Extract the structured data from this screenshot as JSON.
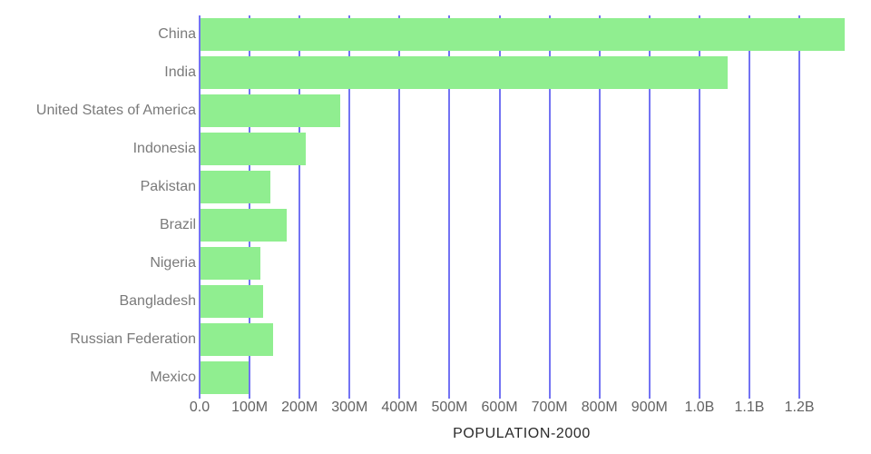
{
  "chart_data": {
    "type": "bar",
    "orientation": "horizontal",
    "title": "",
    "xlabel": "POPULATION-2000",
    "ylabel": "",
    "grid": true,
    "legend": false,
    "categories": [
      "China",
      "India",
      "United States of America",
      "Indonesia",
      "Pakistan",
      "Brazil",
      "Nigeria",
      "Bangladesh",
      "Russian Federation",
      "Mexico"
    ],
    "values_millions": [
      1290.6,
      1056.6,
      281.7,
      211.5,
      142.3,
      174.8,
      122.3,
      127.7,
      146.8,
      98.9
    ],
    "xlim_millions": [
      0,
      1290.6
    ],
    "xticks": [
      {
        "label": "0.0",
        "value_millions": 0
      },
      {
        "label": "100M",
        "value_millions": 100
      },
      {
        "label": "200M",
        "value_millions": 200
      },
      {
        "label": "300M",
        "value_millions": 300
      },
      {
        "label": "400M",
        "value_millions": 400
      },
      {
        "label": "500M",
        "value_millions": 500
      },
      {
        "label": "600M",
        "value_millions": 600
      },
      {
        "label": "700M",
        "value_millions": 700
      },
      {
        "label": "800M",
        "value_millions": 800
      },
      {
        "label": "900M",
        "value_millions": 900
      },
      {
        "label": "1.0B",
        "value_millions": 1000
      },
      {
        "label": "1.1B",
        "value_millions": 1100
      },
      {
        "label": "1.2B",
        "value_millions": 1200
      }
    ],
    "colors": {
      "bar": "#90ee90",
      "gridline": "#7373f3",
      "category_label": "#7a7a7a",
      "tick_label": "#636363",
      "axis_title": "#2b2b2b",
      "background": "#ffffff"
    }
  }
}
